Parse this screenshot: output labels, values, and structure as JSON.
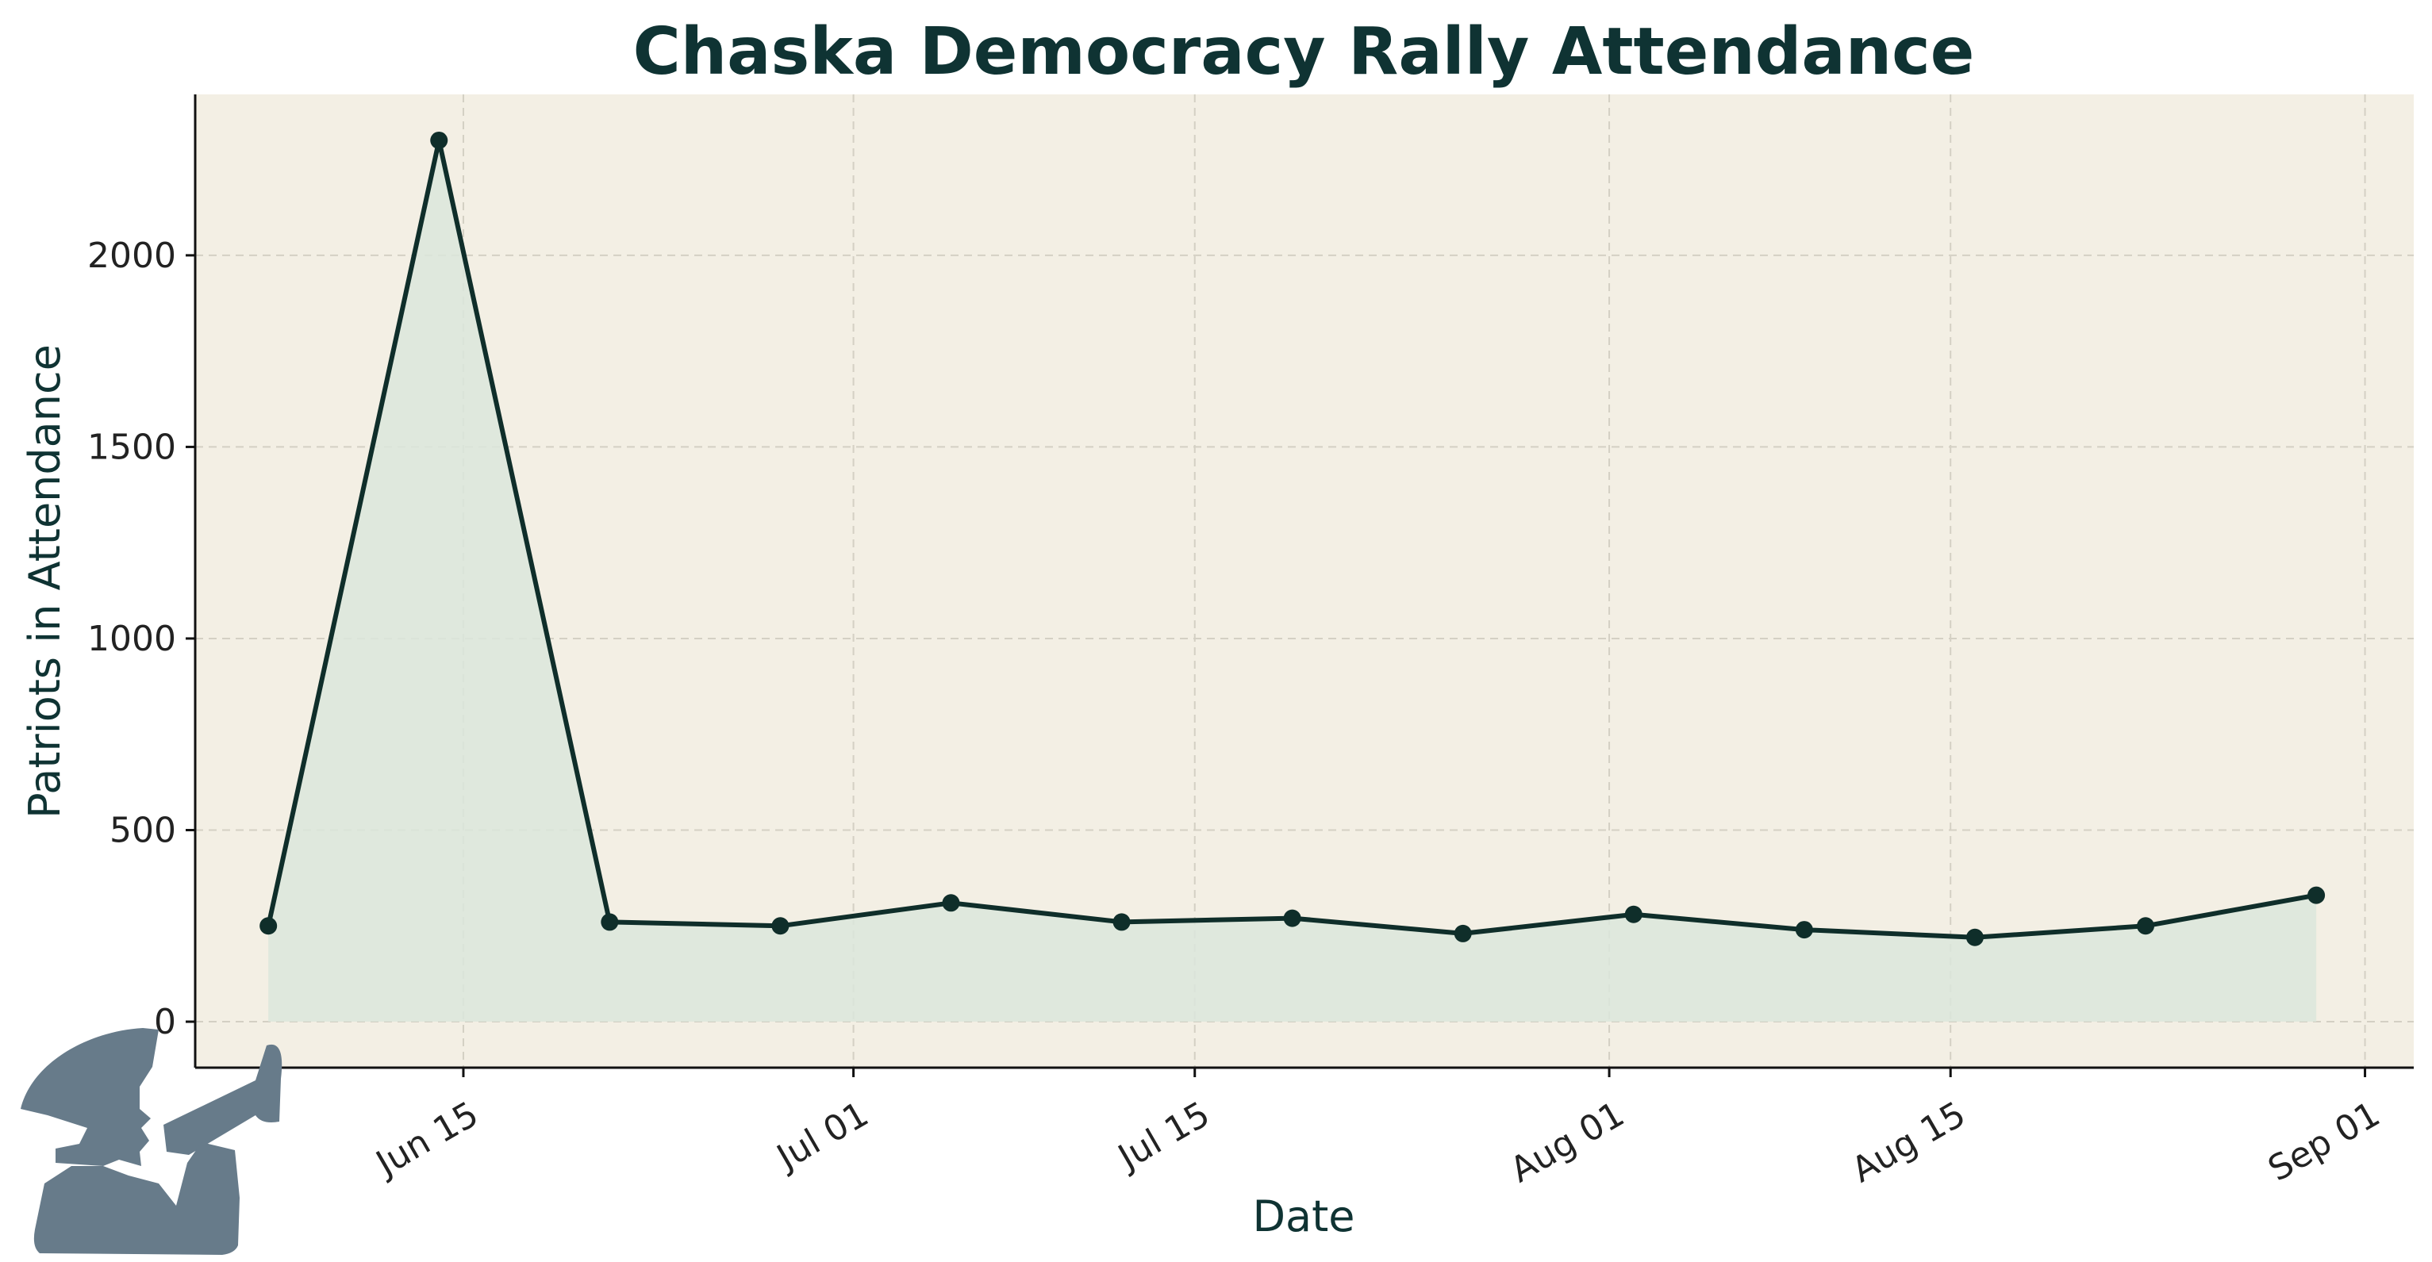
{
  "chart_data": {
    "type": "line",
    "title": "Chaska Democracy Rally Attendance",
    "xlabel": "Date",
    "ylabel": "Patriots in Attendance",
    "x_ticks": [
      "Jun 15",
      "Jul 01",
      "Jul 15",
      "Aug 01",
      "Aug 15",
      "Sep 01"
    ],
    "y_ticks": [
      "0",
      "500",
      "1000",
      "1500",
      "2000"
    ],
    "xlim": [
      "2024-06-04",
      "2024-09-03"
    ],
    "ylim": [
      -120,
      2420
    ],
    "grid": true,
    "area_fill": true,
    "series": [
      {
        "x": [
          "2024-06-07",
          "2024-06-14",
          "2024-06-21",
          "2024-06-28",
          "2024-07-05",
          "2024-07-12",
          "2024-07-19",
          "2024-07-26",
          "2024-08-02",
          "2024-08-09",
          "2024-08-16",
          "2024-08-23",
          "2024-08-30"
        ],
        "values": [
          250,
          2300,
          260,
          250,
          310,
          260,
          270,
          230,
          280,
          240,
          220,
          250,
          330
        ]
      }
    ],
    "colors": {
      "line": "#0f2e2a",
      "fill": "#dbe6dc",
      "plot_background": "#f3efe4",
      "grid": "#d4d0c4",
      "silhouette": "#677b8a"
    },
    "decoration": "person-with-megaphone-icon"
  }
}
